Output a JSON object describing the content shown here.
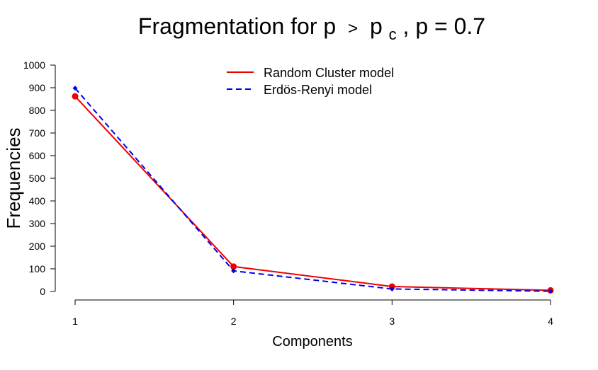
{
  "chart_data": {
    "type": "line",
    "title": {
      "main": "Fragmentation for p",
      "gt": ">",
      "p": "p",
      "sub": "c",
      "rest": ",  p =  0.7"
    },
    "xlabel": "Components",
    "ylabel": "Frequencies",
    "x": [
      1,
      2,
      3,
      4
    ],
    "x_ticks": [
      "1",
      "2",
      "3",
      "4"
    ],
    "y_ticks": [
      "0",
      "100",
      "200",
      "300",
      "400",
      "500",
      "600",
      "700",
      "800",
      "900",
      "1000"
    ],
    "ylim": [
      0,
      1000
    ],
    "xlim": [
      1,
      4
    ],
    "legend_position": "top-center",
    "series": [
      {
        "name": "Random Cluster model",
        "values": [
          862,
          110,
          22,
          5
        ],
        "color": "#ee0000",
        "line": "solid",
        "marker": "circle"
      },
      {
        "name": "Erdös-Renyi model",
        "values": [
          898,
          91,
          11,
          1
        ],
        "color": "#0000ee",
        "line": "dashed",
        "marker": "diamond"
      }
    ]
  }
}
